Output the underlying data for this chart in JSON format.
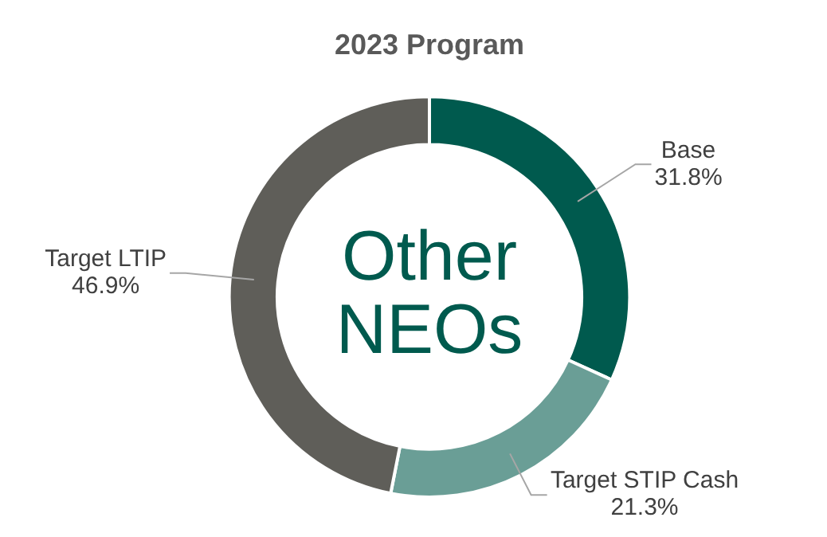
{
  "chart_data": {
    "type": "donut",
    "title": "2023 Program",
    "categories": [
      "Base",
      "Target STIP Cash",
      "Target LTIP"
    ],
    "values": [
      31.8,
      21.3,
      46.9
    ],
    "value_labels": [
      "31.8%",
      "21.3%",
      "46.9%"
    ],
    "colors": [
      "#005a4e",
      "#6a9e96",
      "#5f5e59"
    ],
    "annotations": [
      "Other NEOs"
    ],
    "legend": false
  }
}
